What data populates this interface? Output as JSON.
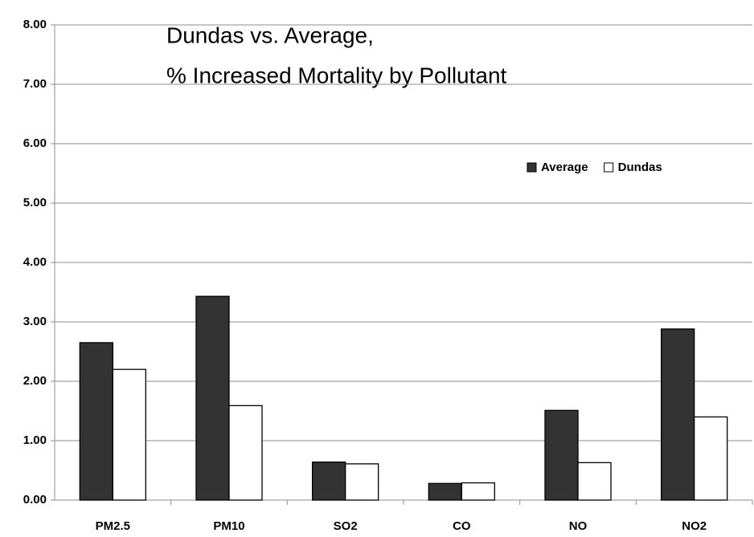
{
  "chart_data": {
    "type": "bar",
    "title": [
      "Dundas vs. Average,",
      "% Increased Mortality by Pollutant"
    ],
    "categories": [
      "PM2.5",
      "PM10",
      "SO2",
      "CO",
      "NO",
      "NO2"
    ],
    "series": [
      {
        "name": "Average",
        "color": "#333333",
        "values": [
          2.65,
          3.43,
          0.64,
          0.28,
          1.51,
          2.88
        ]
      },
      {
        "name": "Dundas",
        "color": "#ffffff",
        "values": [
          2.2,
          1.59,
          0.61,
          0.29,
          0.63,
          1.4
        ]
      }
    ],
    "ylim": [
      0,
      8
    ],
    "yticks": [
      {
        "value": 0,
        "label": "0.00"
      },
      {
        "value": 1,
        "label": "1.00"
      },
      {
        "value": 2,
        "label": "2.00"
      },
      {
        "value": 3,
        "label": "3.00"
      },
      {
        "value": 4,
        "label": "4.00"
      },
      {
        "value": 5,
        "label": "5.00"
      },
      {
        "value": 6,
        "label": "6.00"
      },
      {
        "value": 7,
        "label": "7.00"
      },
      {
        "value": 8,
        "label": "8.00"
      }
    ],
    "grid": true,
    "legend": "upper right"
  }
}
